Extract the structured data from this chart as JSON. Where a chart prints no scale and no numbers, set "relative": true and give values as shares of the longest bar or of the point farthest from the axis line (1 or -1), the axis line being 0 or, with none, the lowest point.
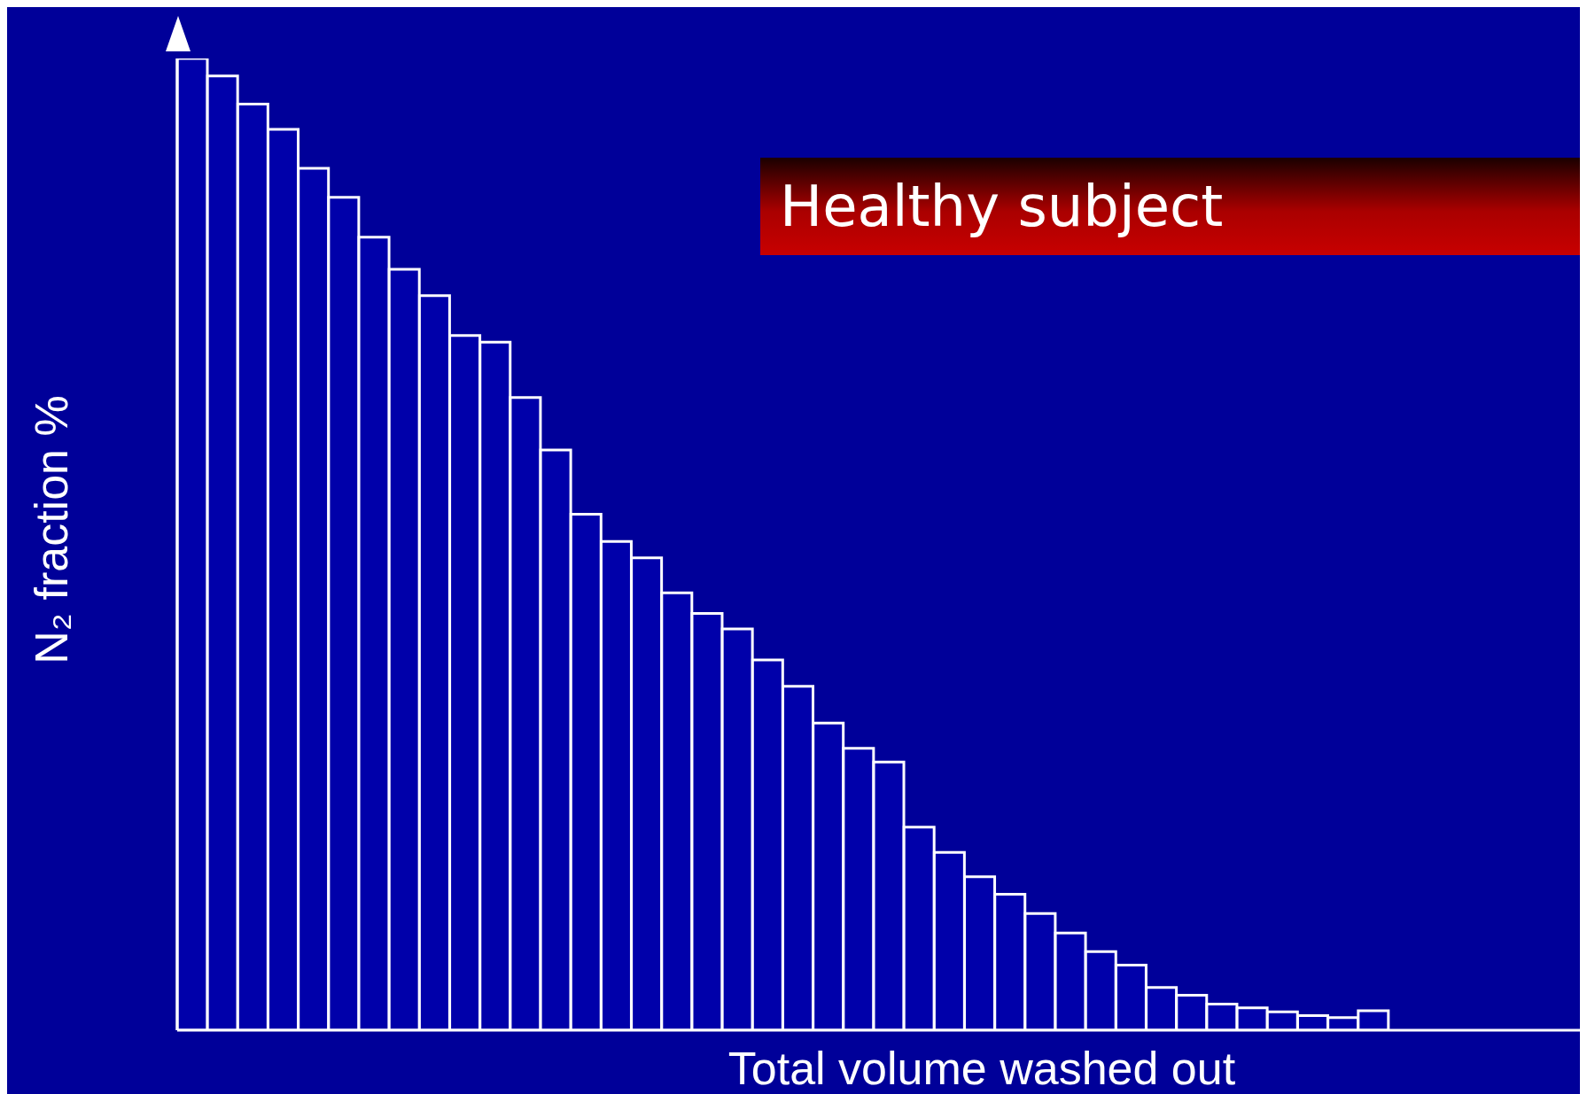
{
  "chart_data": {
    "type": "bar",
    "title": "Healthy subject",
    "xlabel": "Total volume washed out",
    "ylabel": "N₂ fraction  %",
    "relative": true,
    "legend": false,
    "color": "#0000aa",
    "categories": [
      null,
      null,
      null,
      null,
      null,
      null,
      null,
      null,
      null,
      null,
      null,
      null,
      null,
      null,
      null,
      null,
      null,
      null,
      null,
      null,
      null,
      null,
      null,
      null,
      null,
      null,
      null,
      null,
      null,
      null,
      null,
      null,
      null,
      null,
      null,
      null,
      null,
      null,
      null,
      null
    ],
    "values": [
      1,
      0.982,
      0.953,
      0.927,
      0.887,
      0.857,
      0.816,
      0.783,
      0.756,
      0.715,
      0.708,
      0.651,
      0.597,
      0.531,
      0.503,
      0.486,
      0.45,
      0.429,
      0.413,
      0.381,
      0.354,
      0.316,
      0.29,
      0.276,
      0.209,
      0.183,
      0.158,
      0.14,
      0.12,
      0.1,
      0.081,
      0.067,
      0.044,
      0.036,
      0.027,
      0.023,
      0.019,
      0.015,
      0.013,
      0.02
    ]
  }
}
